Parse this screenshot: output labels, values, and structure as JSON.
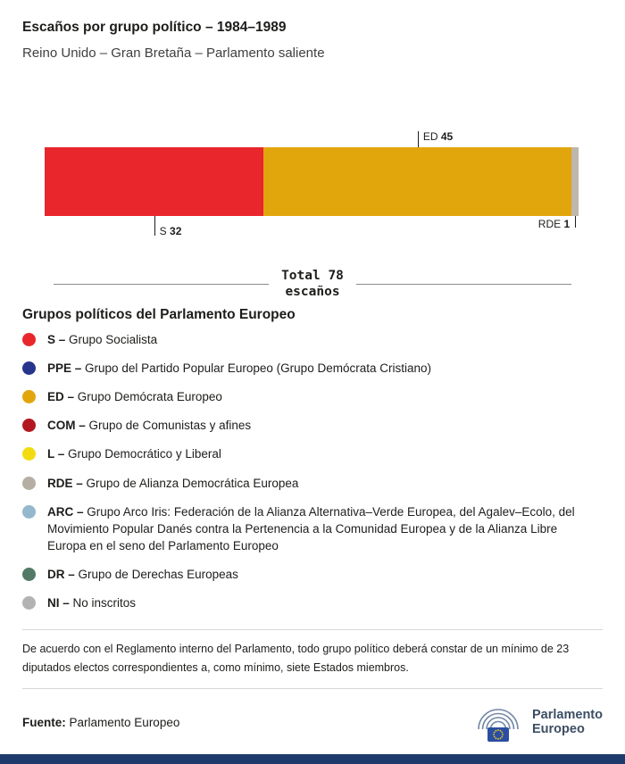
{
  "header": {
    "title": "Escaños por grupo político – 1984–1989",
    "subtitle": "Reino Unido – Gran Bretaña – Parlamento saliente"
  },
  "chart_data": {
    "type": "bar",
    "orientation": "horizontal-stacked",
    "title": "Escaños por grupo político – 1984–1989",
    "total": 78,
    "total_line1": "Total 78",
    "total_line2": "escaños",
    "series": [
      {
        "name": "S",
        "value": 32,
        "color": "#e8262c"
      },
      {
        "name": "ED",
        "value": 45,
        "color": "#e2a60d"
      },
      {
        "name": "RDE",
        "value": 1,
        "color": "#bdb7ac"
      }
    ]
  },
  "legend": {
    "heading": "Grupos políticos del Parlamento Europeo",
    "items": [
      {
        "abbr": "S –",
        "label": "Grupo Socialista",
        "color": "#e8262c"
      },
      {
        "abbr": "PPE –",
        "label": "Grupo del Partido Popular Europeo (Grupo Demócrata Cristiano)",
        "color": "#27348b"
      },
      {
        "abbr": "ED –",
        "label": "Grupo Demócrata Europeo",
        "color": "#e2a60d"
      },
      {
        "abbr": "COM –",
        "label": "Grupo de Comunistas y afines",
        "color": "#b4161f"
      },
      {
        "abbr": "L –",
        "label": "Grupo Democrático y Liberal",
        "color": "#f2dc0f"
      },
      {
        "abbr": "RDE –",
        "label": "Grupo de Alianza Democrática Europea",
        "color": "#b5aea3"
      },
      {
        "abbr": "ARC –",
        "label": "Grupo Arco Iris: Federación de la Alianza Alternativa–Verde Europea, del Agalev–Ecolo, del Movimiento Popular Danés contra la Pertenencia a la Comunidad Europea y de la Alianza Libre Europa en el seno del Parlamento Europeo",
        "color": "#94b8cc"
      },
      {
        "abbr": "DR –",
        "label": "Grupo de Derechas Europeas",
        "color": "#537a67"
      },
      {
        "abbr": "NI –",
        "label": "No inscritos",
        "color": "#b3b3b3"
      }
    ]
  },
  "footnote": "De acuerdo con el Reglamento interno del Parlamento, todo grupo político deberá constar de un mínimo de 23 diputados electos correspondientes a, como mínimo, siete Estados miembros.",
  "source": {
    "label": "Fuente:",
    "value": "Parlamento Europeo"
  },
  "logo": {
    "line1": "Parlamento",
    "line2": "Europeo"
  }
}
